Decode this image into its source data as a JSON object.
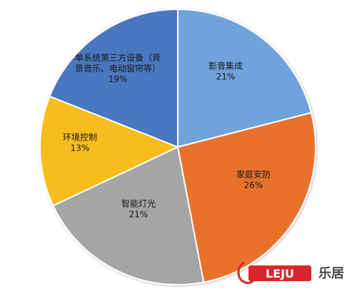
{
  "chart_data": {
    "type": "pie",
    "slices": [
      {
        "label": "影音集成",
        "pct_label": "21%",
        "value": 21,
        "color": "#6fa3dc"
      },
      {
        "label": "家庭安防",
        "pct_label": "26%",
        "value": 26,
        "color": "#e9722b"
      },
      {
        "label": "智能灯光",
        "pct_label": "21%",
        "value": 21,
        "color": "#a5a5a5"
      },
      {
        "label": "环境控制",
        "pct_label": "13%",
        "value": 13,
        "color": "#f6bd1c"
      },
      {
        "label_lines": [
          "单系统第三方设备（背",
          "景音乐、电动窗帘等）"
        ],
        "pct_label": "19%",
        "value": 19,
        "color": "#4a77c0"
      }
    ],
    "start_angle_deg": 0,
    "direction": "clockwise"
  },
  "watermark": {
    "logo_text": "LEJU",
    "brand_text": "乐居"
  }
}
